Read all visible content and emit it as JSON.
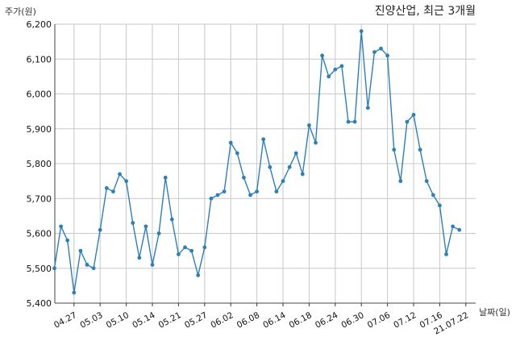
{
  "chart_data": {
    "type": "line",
    "title": "진양산업, 최근 3개월",
    "ylabel": "주가(원)",
    "xlabel": "날짜(일)",
    "ylim": [
      5400,
      6200
    ],
    "yticks": [
      5400,
      5500,
      5600,
      5700,
      5800,
      5900,
      6000,
      6100,
      6200
    ],
    "ytick_labels": [
      "5,400",
      "5,500",
      "5,600",
      "5,700",
      "5,800",
      "5,900",
      "6,000",
      "6,100",
      "6,200"
    ],
    "xtick_labels": [
      "04.27",
      "05.03",
      "05.10",
      "05.14",
      "05.21",
      "05.27",
      "06.02",
      "06.08",
      "06.14",
      "06.18",
      "06.24",
      "06.30",
      "07.06",
      "07.12",
      "07.16",
      "21.07.22"
    ],
    "xtick_index": [
      3,
      7,
      11,
      15,
      19,
      23,
      27,
      31,
      35,
      39,
      43,
      47,
      51,
      55,
      59,
      63
    ],
    "grid": true,
    "line_color": "#2e7fb8",
    "grid_color": "#c8c8c8",
    "series": [
      {
        "values": [
          5500,
          5620,
          5580,
          5430,
          5550,
          5510,
          5500,
          5610,
          5730,
          5720,
          5770,
          5750,
          5630,
          5530,
          5620,
          5510,
          5600,
          5760,
          5640,
          5540,
          5560,
          5550,
          5480,
          5560,
          5700,
          5710,
          5720,
          5860,
          5830,
          5760,
          5710,
          5720,
          5870,
          5790,
          5720,
          5750,
          5790,
          5830,
          5770,
          5910,
          5860,
          6110,
          6050,
          6070,
          6080,
          5920,
          5920,
          6180,
          5960,
          6120,
          6130,
          6110,
          5840,
          5750,
          5920,
          5940,
          5840,
          5750,
          5710,
          5680,
          5540,
          5620,
          5610
        ]
      }
    ]
  }
}
